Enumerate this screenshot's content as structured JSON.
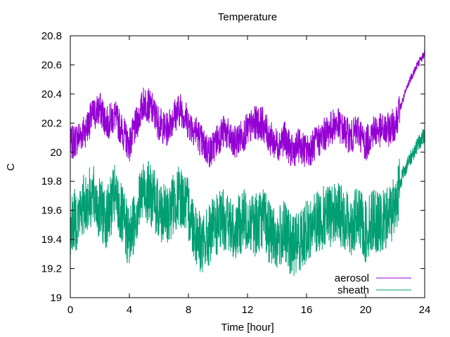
{
  "chart_data": {
    "type": "line",
    "title": "Temperature",
    "xlabel": "Time [hour]",
    "ylabel": "C",
    "xlim": [
      0,
      24
    ],
    "ylim": [
      19,
      20.8
    ],
    "xticks": [
      0,
      4,
      8,
      12,
      16,
      20,
      24
    ],
    "yticks": [
      19,
      19.2,
      19.4,
      19.6,
      19.8,
      20,
      20.2,
      20.4,
      20.6,
      20.8
    ],
    "xtick_labels": [
      "0",
      "4",
      "8",
      "12",
      "16",
      "20",
      "24"
    ],
    "ytick_labels": [
      "19",
      "19.2",
      "19.4",
      "19.6",
      "19.8",
      "20",
      "20.2",
      "20.4",
      "20.6",
      "20.8"
    ],
    "grid": false,
    "legend": {
      "position": "bottom-right"
    },
    "series": [
      {
        "name": "aerosol",
        "color": "#9400d3",
        "x": [
          0,
          0.5,
          1,
          1.5,
          2,
          2.5,
          3,
          3.5,
          4,
          4.5,
          5,
          5.5,
          6,
          6.5,
          7,
          7.5,
          8,
          8.5,
          9,
          9.5,
          10,
          10.5,
          11,
          11.5,
          12,
          12.5,
          13,
          13.5,
          14,
          14.5,
          15,
          15.5,
          16,
          16.5,
          17,
          17.5,
          18,
          18.5,
          19,
          19.5,
          20,
          20.5,
          21,
          21.5,
          22,
          22.5,
          23,
          23.5,
          24
        ],
        "y": [
          20.05,
          20.1,
          20.15,
          20.25,
          20.3,
          20.2,
          20.25,
          20.15,
          20.05,
          20.2,
          20.35,
          20.3,
          20.2,
          20.15,
          20.25,
          20.3,
          20.2,
          20.15,
          20.05,
          20.0,
          20.1,
          20.15,
          20.05,
          20.1,
          20.15,
          20.2,
          20.2,
          20.1,
          20.05,
          20.1,
          20.0,
          20.05,
          20.0,
          20.05,
          20.1,
          20.15,
          20.2,
          20.15,
          20.1,
          20.15,
          20.05,
          20.15,
          20.15,
          20.15,
          20.2,
          20.35,
          20.5,
          20.6,
          20.68
        ]
      },
      {
        "name": "sheath",
        "color": "#009e73",
        "x": [
          0,
          0.5,
          1,
          1.5,
          2,
          2.5,
          3,
          3.5,
          4,
          4.5,
          5,
          5.5,
          6,
          6.5,
          7,
          7.5,
          8,
          8.5,
          9,
          9.5,
          10,
          10.5,
          11,
          11.5,
          12,
          12.5,
          13,
          13.5,
          14,
          14.5,
          15,
          15.5,
          16,
          16.5,
          17,
          17.5,
          18,
          18.5,
          19,
          19.5,
          20,
          20.5,
          21,
          21.5,
          22,
          22.5,
          23,
          23.5,
          24
        ],
        "y": [
          19.5,
          19.55,
          19.65,
          19.7,
          19.6,
          19.55,
          19.7,
          19.55,
          19.4,
          19.6,
          19.75,
          19.7,
          19.6,
          19.55,
          19.65,
          19.7,
          19.6,
          19.45,
          19.35,
          19.45,
          19.5,
          19.55,
          19.45,
          19.5,
          19.55,
          19.5,
          19.55,
          19.45,
          19.4,
          19.45,
          19.35,
          19.4,
          19.45,
          19.5,
          19.55,
          19.55,
          19.6,
          19.55,
          19.5,
          19.55,
          19.45,
          19.55,
          19.5,
          19.55,
          19.65,
          19.85,
          19.95,
          20.05,
          20.12
        ]
      }
    ]
  }
}
